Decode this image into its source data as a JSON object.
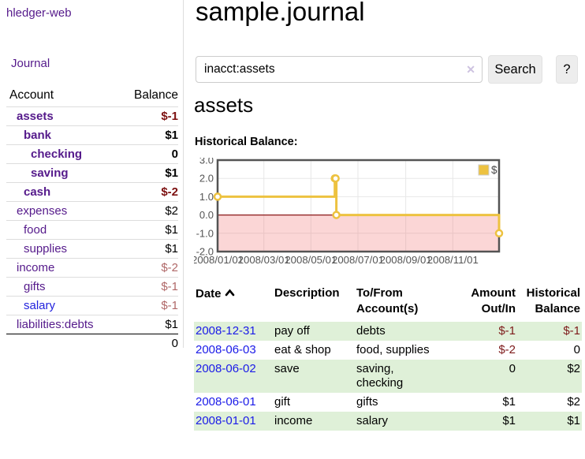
{
  "app": {
    "title": "hledger-web",
    "nav_journal_label": "Journal"
  },
  "colors": {
    "visited_link_purple": "#551A8B",
    "link_blue": "#2222dd",
    "negative_strong_red": "#7c1010",
    "negative_soft_red": "#b06868",
    "table_negative_red": "#7d1a1a",
    "row_stripe_green": "#dff0d8",
    "chart_line_gold": "#edc240",
    "chart_zero_line_red": "#8b1a1a",
    "chart_negative_region_pink": "#fbdede"
  },
  "sidebar": {
    "headers": {
      "account": "Account",
      "balance": "Balance"
    },
    "accounts": [
      {
        "name": "assets",
        "indent": 0,
        "bold": true,
        "blue": false,
        "balance": "$-1"
      },
      {
        "name": "bank",
        "indent": 1,
        "bold": true,
        "blue": false,
        "balance": "$1"
      },
      {
        "name": "checking",
        "indent": 2,
        "bold": true,
        "blue": false,
        "balance": "0"
      },
      {
        "name": "saving",
        "indent": 2,
        "bold": true,
        "blue": false,
        "balance": "$1"
      },
      {
        "name": "cash",
        "indent": 1,
        "bold": true,
        "blue": false,
        "balance": "$-2"
      },
      {
        "name": "expenses",
        "indent": 0,
        "bold": false,
        "blue": false,
        "balance": "$2"
      },
      {
        "name": "food",
        "indent": 1,
        "bold": false,
        "blue": false,
        "balance": "$1"
      },
      {
        "name": "supplies",
        "indent": 1,
        "bold": false,
        "blue": false,
        "balance": "$1"
      },
      {
        "name": "income",
        "indent": 0,
        "bold": false,
        "blue": false,
        "balance": "$-2"
      },
      {
        "name": "gifts",
        "indent": 1,
        "bold": false,
        "blue": false,
        "balance": "$-1"
      },
      {
        "name": "salary",
        "indent": 1,
        "bold": false,
        "blue": true,
        "balance": "$-1"
      },
      {
        "name": "liabilities:debts",
        "indent": 0,
        "bold": false,
        "blue": false,
        "balance": "$1"
      }
    ],
    "total": "0"
  },
  "main": {
    "title": "sample.journal",
    "search": {
      "query": "inacct:assets",
      "clear_icon": "✕",
      "search_button_label": "Search",
      "help_button_label": "?"
    },
    "account_heading": "assets",
    "chart_label": "Historical Balance:",
    "register": {
      "headers": {
        "date": "Date",
        "description": "Description",
        "accounts": "To/From\nAccount(s)",
        "amount": "Amount\nOut/In",
        "balance": "Historical\nBalance"
      },
      "rows": [
        {
          "date": "2008-12-31",
          "description": "pay off",
          "accounts": "debts",
          "amount": "$-1",
          "balance": "$-1"
        },
        {
          "date": "2008-06-03",
          "description": "eat & shop",
          "accounts": "food, supplies",
          "amount": "$-2",
          "balance": "0"
        },
        {
          "date": "2008-06-02",
          "description": "save",
          "accounts": "saving,\nchecking",
          "amount": "0",
          "balance": "$2"
        },
        {
          "date": "2008-06-01",
          "description": "gift",
          "accounts": "gifts",
          "amount": "$1",
          "balance": "$2"
        },
        {
          "date": "2008-01-01",
          "description": "income",
          "accounts": "salary",
          "amount": "$1",
          "balance": "$1"
        }
      ]
    }
  },
  "chart_data": {
    "type": "line",
    "step": true,
    "title": "Historical Balance:",
    "legend_position": "top-right",
    "grid": true,
    "ylim": [
      -2,
      3
    ],
    "yticks": [
      3.0,
      2.0,
      1.0,
      0.0,
      -1.0,
      -2.0
    ],
    "x_total_days": 365,
    "xticks": [
      {
        "day": 0,
        "label": "2008/01/01"
      },
      {
        "day": 60,
        "label": "2008/03/01"
      },
      {
        "day": 121,
        "label": "2008/05/01"
      },
      {
        "day": 182,
        "label": "2008/07/01"
      },
      {
        "day": 244,
        "label": "2008/09/01"
      },
      {
        "day": 305,
        "label": "2008/11/01"
      }
    ],
    "series": [
      {
        "name": "$",
        "color": "#edc240",
        "points": [
          {
            "date": "2008-01-01",
            "day": 0,
            "value": 1
          },
          {
            "date": "2008-06-01",
            "day": 152,
            "value": 2
          },
          {
            "date": "2008-06-02",
            "day": 153,
            "value": 2
          },
          {
            "date": "2008-06-03",
            "day": 154,
            "value": 0
          },
          {
            "date": "2008-12-31",
            "day": 365,
            "value": -1
          }
        ]
      }
    ],
    "zero_line_color": "#8b1a1a",
    "negative_region": true
  }
}
